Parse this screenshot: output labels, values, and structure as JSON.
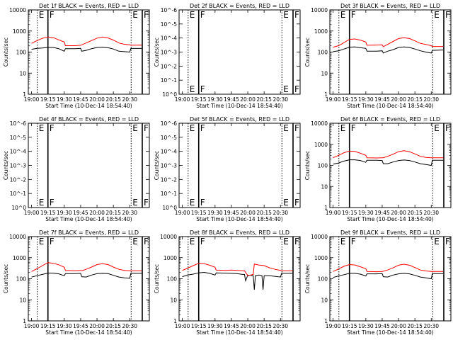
{
  "chart_data": [
    {
      "type": "line",
      "title": "Det 1f BLACK = Events, RED = LLD",
      "xlabel": "Start Time (10-Dec-14 18:54:40)",
      "ylabel": "Counts/sec",
      "yscale": "log",
      "xticks": [
        "19:00",
        "19:15",
        "19:30",
        "19:45",
        "20:00",
        "20:15",
        "20:30"
      ],
      "yticks": [
        "1",
        "10",
        "100",
        "1000",
        "10000"
      ],
      "markers": [
        {
          "label": "E",
          "x": 5.3
        },
        {
          "label": "F",
          "x": 15.0
        },
        {
          "label": "E",
          "x": 91.3
        },
        {
          "label": "F",
          "x": 101.5
        }
      ],
      "series": [
        {
          "color": "#000000",
          "x": [
            0,
            5,
            10,
            15,
            20,
            25,
            30,
            31,
            40,
            45,
            46,
            50,
            55,
            60,
            65,
            70,
            75,
            80,
            85,
            90,
            91,
            100,
            101
          ],
          "y": [
            135,
            150,
            155,
            165,
            165,
            145,
            110,
            145,
            145,
            150,
            110,
            120,
            145,
            165,
            170,
            160,
            140,
            110,
            105,
            100,
            148,
            148,
            150
          ]
        },
        {
          "color": "#ff0000",
          "x": [
            0,
            5,
            10,
            15,
            20,
            25,
            30,
            31,
            40,
            45,
            46,
            50,
            55,
            60,
            65,
            70,
            75,
            80,
            85,
            90,
            91,
            100,
            101
          ],
          "y": [
            260,
            350,
            450,
            520,
            480,
            380,
            300,
            200,
            200,
            210,
            220,
            270,
            350,
            460,
            520,
            470,
            370,
            270,
            235,
            220,
            210,
            215,
            210
          ]
        }
      ]
    },
    {
      "type": "line",
      "title": "Det 2f BLACK = Events, RED = LLD",
      "xlabel": "Start Time (10-Dec-14 18:54:40)",
      "ylabel": "Counts/sec",
      "yscale": "log",
      "xticks": [
        "19:00",
        "19:15",
        "19:30",
        "19:45",
        "20:00",
        "20:15",
        "20:30"
      ],
      "yticks": [
        "10^0",
        "10^-1",
        "10^-2",
        "10^-3",
        "10^-4",
        "10^-5",
        "10^-6"
      ],
      "markers": [
        {
          "label": "E",
          "x": 5.3
        },
        {
          "label": "F",
          "x": 15.0
        },
        {
          "label": "E",
          "x": 91.3
        },
        {
          "label": "F",
          "x": 101.5
        }
      ],
      "series": []
    },
    {
      "type": "line",
      "title": "Det 3f BLACK = Events, RED = LLD",
      "xlabel": "Start Time (10-Dec-14 18:54:40)",
      "ylabel": "Counts/sec",
      "yscale": "log",
      "xticks": [
        "19:00",
        "19:15",
        "19:30",
        "19:45",
        "20:00",
        "20:15",
        "20:30"
      ],
      "yticks": [
        "1",
        "10",
        "100",
        "1000",
        "10000"
      ],
      "markers": [
        {
          "label": "E",
          "x": 5.3
        },
        {
          "label": "F",
          "x": 15.0
        },
        {
          "label": "E",
          "x": 91.3
        },
        {
          "label": "F",
          "x": 101.5
        }
      ],
      "series": [
        {
          "color": "#000000",
          "x": [
            0,
            5,
            10,
            15,
            20,
            25,
            30,
            31,
            40,
            45,
            46,
            50,
            55,
            60,
            65,
            70,
            75,
            80,
            85,
            90,
            91,
            100,
            101
          ],
          "y": [
            105,
            115,
            140,
            170,
            175,
            160,
            150,
            110,
            110,
            115,
            90,
            110,
            130,
            165,
            175,
            165,
            140,
            115,
            100,
            90,
            120,
            125,
            125
          ]
        },
        {
          "color": "#ff0000",
          "x": [
            0,
            5,
            10,
            15,
            20,
            25,
            30,
            31,
            40,
            45,
            46,
            50,
            55,
            60,
            65,
            70,
            75,
            80,
            85,
            90,
            91,
            100,
            101
          ],
          "y": [
            170,
            200,
            280,
            400,
            420,
            370,
            300,
            210,
            215,
            220,
            180,
            230,
            320,
            440,
            480,
            440,
            340,
            260,
            230,
            200,
            185,
            185,
            185
          ]
        }
      ]
    },
    {
      "type": "line",
      "title": "Det 4f BLACK = Events, RED = LLD",
      "xlabel": "Start Time (10-Dec-14 18:54:40)",
      "ylabel": "Counts/sec",
      "yscale": "log",
      "xticks": [
        "19:00",
        "19:15",
        "19:30",
        "19:45",
        "20:00",
        "20:15",
        "20:30"
      ],
      "yticks": [
        "10^0",
        "10^-1",
        "10^-2",
        "10^-3",
        "10^-4",
        "10^-5",
        "10^-6"
      ],
      "markers": [
        {
          "label": "E",
          "x": 5.3
        },
        {
          "label": "F",
          "x": 15.0
        },
        {
          "label": "E",
          "x": 91.3
        },
        {
          "label": "F",
          "x": 101.5
        }
      ],
      "series": []
    },
    {
      "type": "line",
      "title": "Det 5f BLACK = Events, RED = LLD",
      "xlabel": "Start Time (10-Dec-14 18:54:40)",
      "ylabel": "Counts/sec",
      "yscale": "log",
      "xticks": [
        "19:00",
        "19:15",
        "19:30",
        "19:45",
        "20:00",
        "20:15",
        "20:30"
      ],
      "yticks": [
        "10^0",
        "10^-1",
        "10^-2",
        "10^-3",
        "10^-4",
        "10^-5",
        "10^-6"
      ],
      "markers": [
        {
          "label": "E",
          "x": 5.3
        },
        {
          "label": "F",
          "x": 15.0
        },
        {
          "label": "E",
          "x": 91.3
        },
        {
          "label": "F",
          "x": 101.5
        }
      ],
      "series": []
    },
    {
      "type": "line",
      "title": "Det 6f BLACK = Events, RED = LLD",
      "xlabel": "Start Time (10-Dec-14 18:54:40)",
      "ylabel": "Counts/sec",
      "yscale": "log",
      "xticks": [
        "19:00",
        "19:15",
        "19:30",
        "19:45",
        "20:00",
        "20:15",
        "20:30"
      ],
      "yticks": [
        "1",
        "10",
        "100",
        "1000",
        "10000"
      ],
      "markers": [
        {
          "label": "E",
          "x": 5.3
        },
        {
          "label": "F",
          "x": 15.0
        },
        {
          "label": "E",
          "x": 91.3
        },
        {
          "label": "F",
          "x": 101.5
        }
      ],
      "series": [
        {
          "color": "#000000",
          "x": [
            0,
            5,
            10,
            15,
            20,
            25,
            30,
            31,
            40,
            45,
            46,
            50,
            55,
            60,
            65,
            70,
            75,
            80,
            85,
            90,
            91,
            100,
            101
          ],
          "y": [
            115,
            130,
            160,
            185,
            185,
            170,
            140,
            175,
            175,
            170,
            120,
            120,
            145,
            170,
            180,
            170,
            145,
            120,
            110,
            100,
            175,
            175,
            175
          ]
        },
        {
          "color": "#ff0000",
          "x": [
            0,
            5,
            10,
            15,
            20,
            25,
            30,
            31,
            40,
            45,
            46,
            50,
            55,
            60,
            65,
            70,
            75,
            80,
            85,
            90,
            91,
            100,
            101
          ],
          "y": [
            230,
            300,
            400,
            480,
            460,
            380,
            300,
            230,
            225,
            230,
            230,
            270,
            340,
            450,
            500,
            450,
            350,
            270,
            240,
            230,
            230,
            230,
            230
          ]
        }
      ]
    },
    {
      "type": "line",
      "title": "Det 7f BLACK = Events, RED = LLD",
      "xlabel": "Start Time (10-Dec-14 18:54:40)",
      "ylabel": "Counts/sec",
      "yscale": "log",
      "xticks": [
        "19:00",
        "19:15",
        "19:30",
        "19:45",
        "20:00",
        "20:15",
        "20:30"
      ],
      "yticks": [
        "1",
        "10",
        "100",
        "1000",
        "10000"
      ],
      "markers": [
        {
          "label": "E",
          "x": 5.3
        },
        {
          "label": "F",
          "x": 15.0
        },
        {
          "label": "E",
          "x": 91.3
        },
        {
          "label": "F",
          "x": 101.5
        }
      ],
      "series": [
        {
          "color": "#000000",
          "x": [
            0,
            5,
            10,
            15,
            20,
            25,
            30,
            31,
            40,
            45,
            46,
            50,
            55,
            60,
            65,
            70,
            75,
            80,
            85,
            90,
            91,
            100,
            101
          ],
          "y": [
            120,
            140,
            160,
            185,
            185,
            170,
            140,
            175,
            175,
            180,
            125,
            120,
            150,
            175,
            180,
            175,
            145,
            120,
            110,
            105,
            180,
            180,
            180
          ]
        },
        {
          "color": "#ff0000",
          "x": [
            0,
            5,
            10,
            15,
            20,
            25,
            30,
            31,
            40,
            45,
            46,
            50,
            55,
            60,
            65,
            70,
            75,
            80,
            85,
            90,
            91,
            100,
            101
          ],
          "y": [
            220,
            300,
            420,
            580,
            540,
            460,
            350,
            250,
            240,
            250,
            240,
            280,
            360,
            470,
            520,
            470,
            360,
            280,
            250,
            240,
            240,
            240,
            240
          ]
        }
      ]
    },
    {
      "type": "line",
      "title": "Det 8f BLACK = Events, RED = LLD",
      "xlabel": "Start Time (10-Dec-14 18:54:40)",
      "ylabel": "Counts/sec",
      "yscale": "log",
      "xticks": [
        "19:00",
        "19:15",
        "19:30",
        "19:45",
        "20:00",
        "20:15",
        "20:30"
      ],
      "yticks": [
        "1",
        "10",
        "100",
        "1000",
        "10000"
      ],
      "markers": [
        {
          "label": "E",
          "x": 5.3
        },
        {
          "label": "F",
          "x": 15.0
        },
        {
          "label": "E",
          "x": 91.3
        },
        {
          "label": "F",
          "x": 101.5
        }
      ],
      "series": [
        {
          "color": "#000000",
          "x": [
            0,
            5,
            10,
            15,
            20,
            25,
            30,
            31,
            40,
            45,
            50,
            55,
            57,
            58,
            60,
            65,
            66,
            67,
            70,
            73,
            74,
            75,
            80,
            90,
            91,
            100,
            101
          ],
          "y": [
            125,
            150,
            165,
            190,
            200,
            180,
            150,
            190,
            185,
            180,
            175,
            160,
            160,
            80,
            150,
            140,
            30,
            140,
            150,
            140,
            30,
            140,
            140,
            120,
            180,
            180,
            180
          ]
        },
        {
          "color": "#ff0000",
          "x": [
            0,
            5,
            10,
            15,
            20,
            25,
            30,
            31,
            40,
            45,
            50,
            55,
            57,
            60,
            65,
            66,
            70,
            75,
            80,
            85,
            90,
            91,
            100,
            101
          ],
          "y": [
            250,
            320,
            420,
            540,
            520,
            440,
            350,
            260,
            250,
            260,
            250,
            240,
            240,
            140,
            160,
            500,
            450,
            420,
            330,
            280,
            250,
            240,
            240,
            240
          ]
        }
      ]
    },
    {
      "type": "line",
      "title": "Det 9f BLACK = Events, RED = LLD",
      "xlabel": "Start Time (10-Dec-14 18:54:40)",
      "ylabel": "Counts/sec",
      "yscale": "log",
      "xticks": [
        "19:00",
        "19:15",
        "19:30",
        "19:45",
        "20:00",
        "20:15",
        "20:30"
      ],
      "yticks": [
        "1",
        "10",
        "100",
        "1000",
        "10000"
      ],
      "markers": [
        {
          "label": "E",
          "x": 5.3
        },
        {
          "label": "F",
          "x": 15.0
        },
        {
          "label": "E",
          "x": 91.3
        },
        {
          "label": "F",
          "x": 101.5
        }
      ],
      "series": [
        {
          "color": "#000000",
          "x": [
            0,
            5,
            10,
            15,
            20,
            25,
            30,
            31,
            40,
            45,
            46,
            50,
            55,
            60,
            65,
            70,
            75,
            80,
            85,
            90,
            91,
            100,
            101
          ],
          "y": [
            115,
            135,
            155,
            180,
            180,
            165,
            135,
            170,
            170,
            175,
            125,
            120,
            150,
            170,
            180,
            170,
            145,
            120,
            110,
            100,
            175,
            175,
            175
          ]
        },
        {
          "color": "#ff0000",
          "x": [
            0,
            5,
            10,
            15,
            20,
            25,
            30,
            31,
            40,
            45,
            46,
            50,
            55,
            60,
            65,
            70,
            75,
            80,
            85,
            90,
            91,
            100,
            101
          ],
          "y": [
            220,
            290,
            390,
            470,
            450,
            370,
            300,
            220,
            215,
            220,
            225,
            260,
            330,
            440,
            490,
            440,
            340,
            260,
            235,
            220,
            220,
            220,
            220
          ]
        }
      ]
    }
  ]
}
